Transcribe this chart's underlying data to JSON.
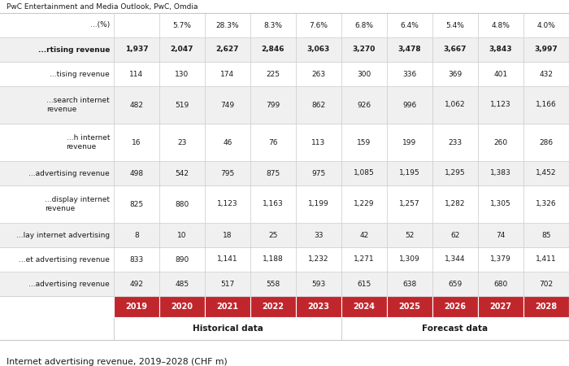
{
  "title": "Internet advertising revenue, 2019–2028 (CHF m)",
  "source": "PwC Entertainment and Media Outlook, PwC, Omdia",
  "header_historical": "Historical data",
  "header_forecast": "Forecast data",
  "years": [
    "2019",
    "2020",
    "2021",
    "2022",
    "2023",
    "2024",
    "2025",
    "2026",
    "2027",
    "2028"
  ],
  "col_split": 5,
  "rows": [
    {
      "label": "...advertising revenue",
      "values": [
        "492",
        "485",
        "517",
        "558",
        "593",
        "615",
        "638",
        "659",
        "680",
        "702"
      ],
      "bold": false,
      "multiline": false
    },
    {
      "label": "...et advertising revenue",
      "values": [
        "833",
        "890",
        "1,141",
        "1,188",
        "1,232",
        "1,271",
        "1,309",
        "1,344",
        "1,379",
        "1,411"
      ],
      "bold": false,
      "multiline": false
    },
    {
      "label": "...lay internet advertising",
      "values": [
        "8",
        "10",
        "18",
        "25",
        "33",
        "42",
        "52",
        "62",
        "74",
        "85"
      ],
      "bold": false,
      "multiline": false
    },
    {
      "label": "...display internet\nrevenue",
      "values": [
        "825",
        "880",
        "1,123",
        "1,163",
        "1,199",
        "1,229",
        "1,257",
        "1,282",
        "1,305",
        "1,326"
      ],
      "bold": false,
      "multiline": true
    },
    {
      "label": "...advertising revenue",
      "values": [
        "498",
        "542",
        "795",
        "875",
        "975",
        "1,085",
        "1,195",
        "1,295",
        "1,383",
        "1,452"
      ],
      "bold": false,
      "multiline": false
    },
    {
      "label": "...h internet\nrevenue",
      "values": [
        "16",
        "23",
        "46",
        "76",
        "113",
        "159",
        "199",
        "233",
        "260",
        "286"
      ],
      "bold": false,
      "multiline": true
    },
    {
      "label": "...search internet\nrevenue",
      "values": [
        "482",
        "519",
        "749",
        "799",
        "862",
        "926",
        "996",
        "1,062",
        "1,123",
        "1,166"
      ],
      "bold": false,
      "multiline": true
    },
    {
      "label": "...tising revenue",
      "values": [
        "114",
        "130",
        "174",
        "225",
        "263",
        "300",
        "336",
        "369",
        "401",
        "432"
      ],
      "bold": false,
      "multiline": false
    },
    {
      "label": "...rtising revenue",
      "values": [
        "1,937",
        "2,047",
        "2,627",
        "2,846",
        "3,063",
        "3,270",
        "3,478",
        "3,667",
        "3,843",
        "3,997"
      ],
      "bold": true,
      "multiline": false
    },
    {
      "label": "...(%)",
      "values": [
        "",
        "5.7%",
        "28.3%",
        "8.3%",
        "7.6%",
        "6.8%",
        "6.4%",
        "5.4%",
        "4.8%",
        "4.0%"
      ],
      "bold": false,
      "multiline": false
    }
  ],
  "red_header": "#C0272D",
  "light_gray": "#f0f0f0",
  "white": "#ffffff",
  "text_dark": "#1a1a1a",
  "border_color": "#c8c8c8",
  "header_text_color": "#ffffff",
  "row_backgrounds": [
    "#f0f0f0",
    "#ffffff",
    "#f0f0f0",
    "#ffffff",
    "#f0f0f0",
    "#ffffff",
    "#f0f0f0",
    "#ffffff",
    "#f0f0f0",
    "#ffffff"
  ]
}
